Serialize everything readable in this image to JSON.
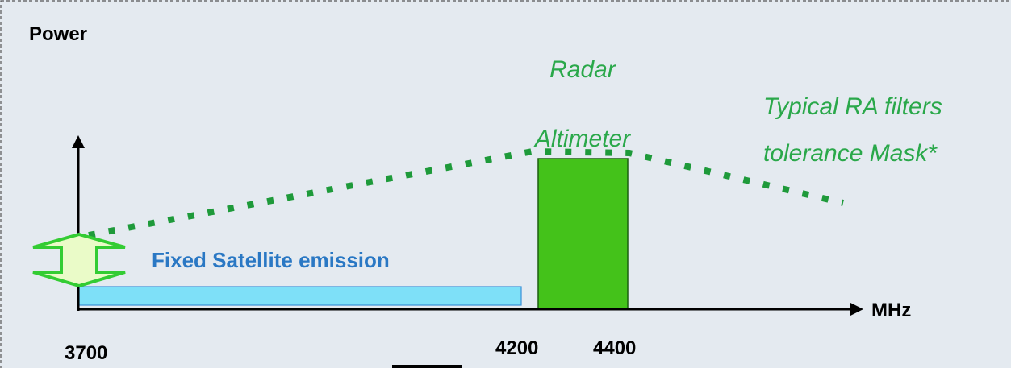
{
  "diagram": {
    "y_axis_label": "Power",
    "x_axis_label": "MHz",
    "band_label": "Fixed Satellite emission",
    "radar_label_line1": "Radar",
    "radar_label_line2": "Altimeter",
    "mask_label_line1": "Typical RA filters",
    "mask_label_line2": "tolerance Mask*",
    "tick_3700": "3700",
    "tick_4200": "4200",
    "tick_4400": "4400",
    "colors": {
      "background": "#e4eaf0",
      "green_text": "#2aa84a",
      "radar_block": "#44c21a",
      "mask_dots": "#1e9a3a",
      "band_fill": "#7ee0f8",
      "band_stroke": "#3a90d8",
      "band_text": "#2a78c4",
      "arrow_fill": "#eafbc8",
      "arrow_stroke": "#33cc33"
    }
  }
}
